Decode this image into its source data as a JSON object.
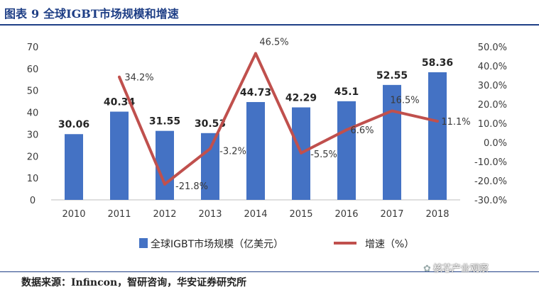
{
  "header": {
    "figure_label": "图表",
    "figure_number": "9",
    "title": "全球IGBT市场规模和增速"
  },
  "source": "数据来源：Infincon，智研咨询，华安证券研究所",
  "watermark": "核芯产业观察",
  "colors": {
    "bar": "#4472c4",
    "line": "#c0504d",
    "title": "#1f3f86"
  },
  "chart_data": {
    "type": "bar",
    "categories": [
      "2010",
      "2011",
      "2012",
      "2013",
      "2014",
      "2015",
      "2016",
      "2017",
      "2018"
    ],
    "series": [
      {
        "name": "全球IGBT市场规模（亿美元）",
        "type": "bar",
        "axis": "left",
        "values": [
          30.06,
          40.34,
          31.55,
          30.53,
          44.73,
          42.29,
          45.1,
          52.55,
          58.36
        ],
        "labels": [
          "30.06",
          "40.34",
          "31.55",
          "30.53",
          "44.73",
          "42.29",
          "45.1",
          "52.55",
          "58.36"
        ]
      },
      {
        "name": "增速（%）",
        "type": "line",
        "axis": "right",
        "x": [
          "2011",
          "2012",
          "2013",
          "2014",
          "2015",
          "2016",
          "2017",
          "2018"
        ],
        "values": [
          34.2,
          -21.8,
          -3.2,
          46.5,
          -5.5,
          6.6,
          16.5,
          11.1
        ],
        "labels": [
          "34.2%",
          "-21.8%",
          "-3.2%",
          "46.5%",
          "-5.5%",
          "6.6%",
          "16.5%",
          "11.1%"
        ]
      }
    ],
    "y_left": {
      "lim": [
        0,
        70
      ],
      "ticks": [
        "0",
        "10",
        "20",
        "30",
        "40",
        "50",
        "60",
        "70"
      ]
    },
    "y_right": {
      "lim": [
        -30,
        50
      ],
      "ticks": [
        "-30.0%",
        "-20.0%",
        "-10.0%",
        "0.0%",
        "10.0%",
        "20.0%",
        "30.0%",
        "40.0%",
        "50.0%"
      ]
    },
    "grid": false,
    "legend": "bottom"
  }
}
